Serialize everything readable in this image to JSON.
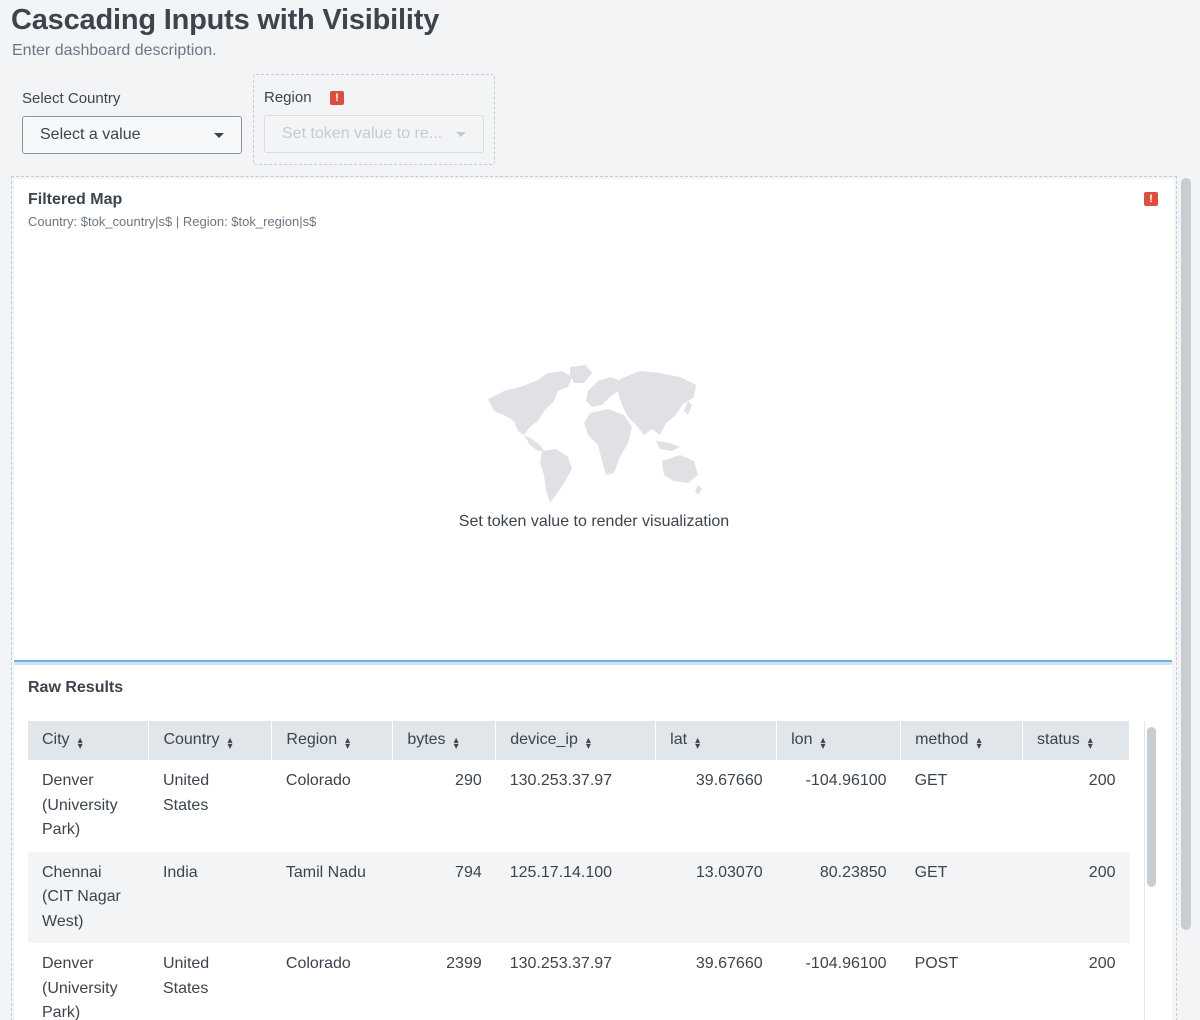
{
  "dashboard": {
    "title": "Cascading Inputs with Visibility",
    "description": "Enter dashboard description."
  },
  "inputs": {
    "country": {
      "label": "Select Country",
      "value": "Select a value"
    },
    "region": {
      "label": "Region",
      "value": "Set token value to re..."
    }
  },
  "map_panel": {
    "title": "Filtered Map",
    "subtitle": "Country: $tok_country|s$ | Region: $tok_region|s$",
    "message": "Set token value to render visualization",
    "icon": "world-map-icon"
  },
  "results_panel": {
    "title": "Raw Results",
    "columns": [
      "City",
      "Country",
      "Region",
      "bytes",
      "device_ip",
      "lat",
      "lon",
      "method",
      "status"
    ],
    "rows": [
      {
        "city": [
          "Denver",
          "(University",
          "Park)"
        ],
        "country": [
          "United",
          "States"
        ],
        "region": "Colorado",
        "bytes": "290",
        "device_ip": "130.253.37.97",
        "lat": "39.67660",
        "lon": "-104.96100",
        "method": "GET",
        "status": "200"
      },
      {
        "city": [
          "Chennai",
          "(CIT Nagar",
          "West)"
        ],
        "country": [
          "India"
        ],
        "region": "Tamil Nadu",
        "bytes": "794",
        "device_ip": "125.17.14.100",
        "lat": "13.03070",
        "lon": "80.23850",
        "method": "GET",
        "status": "200"
      },
      {
        "city": [
          "Denver",
          "(University",
          "Park)"
        ],
        "country": [
          "United",
          "States"
        ],
        "region": "Colorado",
        "bytes": "2399",
        "device_ip": "130.253.37.97",
        "lat": "39.67660",
        "lon": "-104.96100",
        "method": "POST",
        "status": "200"
      }
    ]
  },
  "colors": {
    "background": "#f2f4f5",
    "warning": "#dc4e41",
    "accent": "#6cb3e6"
  }
}
